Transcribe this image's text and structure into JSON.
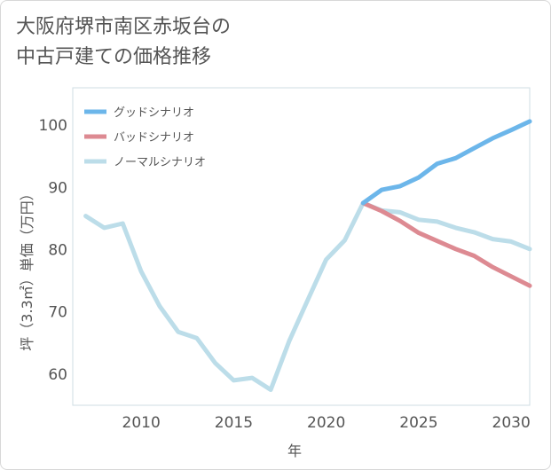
{
  "title": {
    "line1": "大阪府堺市南区赤坂台の",
    "line2": "中古戸建ての価格推移"
  },
  "chart_data": {
    "type": "line",
    "xlabel": "年",
    "ylabel": "坪（3.3㎡）単価（万円）",
    "xlim": [
      2006.3,
      2031
    ],
    "ylim": [
      55,
      106
    ],
    "xticks": [
      2010,
      2015,
      2020,
      2025,
      2030
    ],
    "yticks": [
      60,
      70,
      80,
      90,
      100
    ],
    "grid": true,
    "legend_position": "top-left",
    "series": [
      {
        "name": "グッドシナリオ",
        "color": "#6cb6ea",
        "x": [
          2022,
          2023,
          2024,
          2025,
          2026,
          2027,
          2028,
          2029,
          2030,
          2031
        ],
        "y": [
          87.5,
          89.6,
          90.2,
          91.6,
          93.8,
          94.7,
          96.3,
          97.9,
          99.2,
          100.6
        ]
      },
      {
        "name": "バッドシナリオ",
        "color": "#dd8a92",
        "x": [
          2022,
          2023,
          2024,
          2025,
          2026,
          2027,
          2028,
          2029,
          2030,
          2031
        ],
        "y": [
          87.5,
          86.2,
          84.6,
          82.7,
          81.4,
          80.1,
          79.0,
          77.2,
          75.7,
          74.2
        ]
      },
      {
        "name": "ノーマルシナリオ",
        "color": "#bcdde9",
        "x": [
          2007,
          2008,
          2009,
          2010,
          2011,
          2012,
          2013,
          2014,
          2015,
          2016,
          2017,
          2018,
          2019,
          2020,
          2021,
          2022,
          2023,
          2024,
          2025,
          2026,
          2027,
          2028,
          2029,
          2030,
          2031
        ],
        "y": [
          85.4,
          83.5,
          84.2,
          76.5,
          70.9,
          66.8,
          65.8,
          61.8,
          59.0,
          59.4,
          57.5,
          65.3,
          71.9,
          78.4,
          81.5,
          87.5,
          86.3,
          86.0,
          84.8,
          84.5,
          83.5,
          82.8,
          81.7,
          81.3,
          80.1
        ]
      }
    ]
  }
}
